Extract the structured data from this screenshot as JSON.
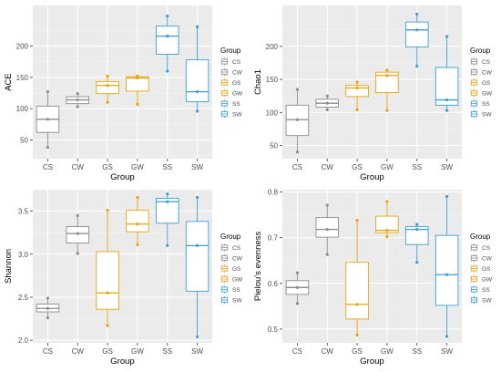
{
  "chart_data": [
    {
      "type": "box",
      "ylabel": "ACE",
      "xlabel": "Group",
      "ylim": [
        20,
        265
      ],
      "yticks": [
        50,
        100,
        150,
        200
      ],
      "categories": [
        "CS",
        "CW",
        "GS",
        "GW",
        "SS",
        "SW"
      ],
      "legend": {
        "title": "Group",
        "entries": [
          "CS",
          "CW",
          "GS",
          "GW",
          "SS",
          "SW"
        ]
      },
      "boxes": [
        {
          "min": 38,
          "q1": 62,
          "median": 83,
          "q3": 104,
          "max": 127
        },
        {
          "min": 103,
          "q1": 108,
          "median": 114,
          "q3": 119,
          "max": 124
        },
        {
          "min": 110,
          "q1": 124,
          "median": 137,
          "q3": 143,
          "max": 152
        },
        {
          "min": 107,
          "q1": 128,
          "median": 149,
          "q3": 151,
          "max": 152
        },
        {
          "min": 160,
          "q1": 187,
          "median": 216,
          "q3": 232,
          "max": 248
        },
        {
          "min": 96,
          "q1": 111,
          "median": 127,
          "q3": 178,
          "max": 231
        }
      ]
    },
    {
      "type": "box",
      "ylabel": "Chao1",
      "xlabel": "Group",
      "ylim": [
        30,
        262
      ],
      "yticks": [
        50,
        100,
        150,
        200
      ],
      "categories": [
        "CS",
        "CW",
        "GS",
        "GW",
        "SS",
        "SW"
      ],
      "legend": {
        "title": "Group",
        "entries": [
          "CS",
          "CW",
          "GS",
          "GW",
          "SS",
          "SW"
        ]
      },
      "boxes": [
        {
          "min": 40,
          "q1": 65,
          "median": 89,
          "q3": 111,
          "max": 135
        },
        {
          "min": 104,
          "q1": 108,
          "median": 114,
          "q3": 120,
          "max": 125
        },
        {
          "min": 104,
          "q1": 124,
          "median": 137,
          "q3": 141,
          "max": 146
        },
        {
          "min": 103,
          "q1": 130,
          "median": 156,
          "q3": 161,
          "max": 164
        },
        {
          "min": 170,
          "q1": 199,
          "median": 225,
          "q3": 237,
          "max": 249
        },
        {
          "min": 103,
          "q1": 111,
          "median": 119,
          "q3": 168,
          "max": 215
        }
      ]
    },
    {
      "type": "box",
      "ylabel": "Shannon",
      "xlabel": "Group",
      "ylim": [
        1.97,
        3.75
      ],
      "yticks": [
        2.0,
        2.5,
        3.0,
        3.5
      ],
      "ytick_labels": [
        "2.0",
        "2.5",
        "3.0",
        "3.5"
      ],
      "categories": [
        "CS",
        "CW",
        "GS",
        "GW",
        "SS",
        "SW"
      ],
      "legend": {
        "title": "Group",
        "entries": [
          "CS",
          "CW",
          "GS",
          "GW",
          "SS",
          "SW"
        ]
      },
      "boxes": [
        {
          "min": 2.26,
          "q1": 2.33,
          "median": 2.37,
          "q3": 2.42,
          "max": 2.49
        },
        {
          "min": 3.01,
          "q1": 3.13,
          "median": 3.24,
          "q3": 3.32,
          "max": 3.45
        },
        {
          "min": 2.17,
          "q1": 2.36,
          "median": 2.55,
          "q3": 3.03,
          "max": 3.51
        },
        {
          "min": 3.11,
          "q1": 3.26,
          "median": 3.35,
          "q3": 3.51,
          "max": 3.66
        },
        {
          "min": 3.1,
          "q1": 3.36,
          "median": 3.61,
          "q3": 3.65,
          "max": 3.7
        },
        {
          "min": 2.04,
          "q1": 2.57,
          "median": 3.1,
          "q3": 3.38,
          "max": 3.66
        }
      ]
    },
    {
      "type": "box",
      "ylabel": "Pielou's evenness",
      "xlabel": "Group",
      "ylim": [
        0.47,
        0.805
      ],
      "yticks": [
        0.5,
        0.6,
        0.7,
        0.8
      ],
      "ytick_labels": [
        "0.5",
        "0.6",
        "0.7",
        "0.8"
      ],
      "categories": [
        "CS",
        "CW",
        "GS",
        "GW",
        "SS",
        "SW"
      ],
      "legend": {
        "title": "Group",
        "entries": [
          "CS",
          "CW",
          "GS",
          "GW",
          "SS",
          "SW"
        ]
      },
      "boxes": [
        {
          "min": 0.556,
          "q1": 0.576,
          "median": 0.591,
          "q3": 0.606,
          "max": 0.623
        },
        {
          "min": 0.663,
          "q1": 0.701,
          "median": 0.718,
          "q3": 0.744,
          "max": 0.771
        },
        {
          "min": 0.487,
          "q1": 0.522,
          "median": 0.554,
          "q3": 0.646,
          "max": 0.738
        },
        {
          "min": 0.702,
          "q1": 0.711,
          "median": 0.716,
          "q3": 0.747,
          "max": 0.779
        },
        {
          "min": 0.646,
          "q1": 0.685,
          "median": 0.718,
          "q3": 0.724,
          "max": 0.729
        },
        {
          "min": 0.484,
          "q1": 0.552,
          "median": 0.619,
          "q3": 0.705,
          "max": 0.79
        }
      ]
    }
  ],
  "colors": {
    "CS": "#8c8c8c",
    "CW": "#8c8c8c",
    "GS": "#e6a50f",
    "GW": "#e6a50f",
    "SS": "#3a9fd6",
    "SW": "#3a9fd6",
    "panel_background": "#ebebeb",
    "gridline": "#ffffff",
    "axis_text": "#4d4d4d",
    "title_text": "#000000"
  }
}
